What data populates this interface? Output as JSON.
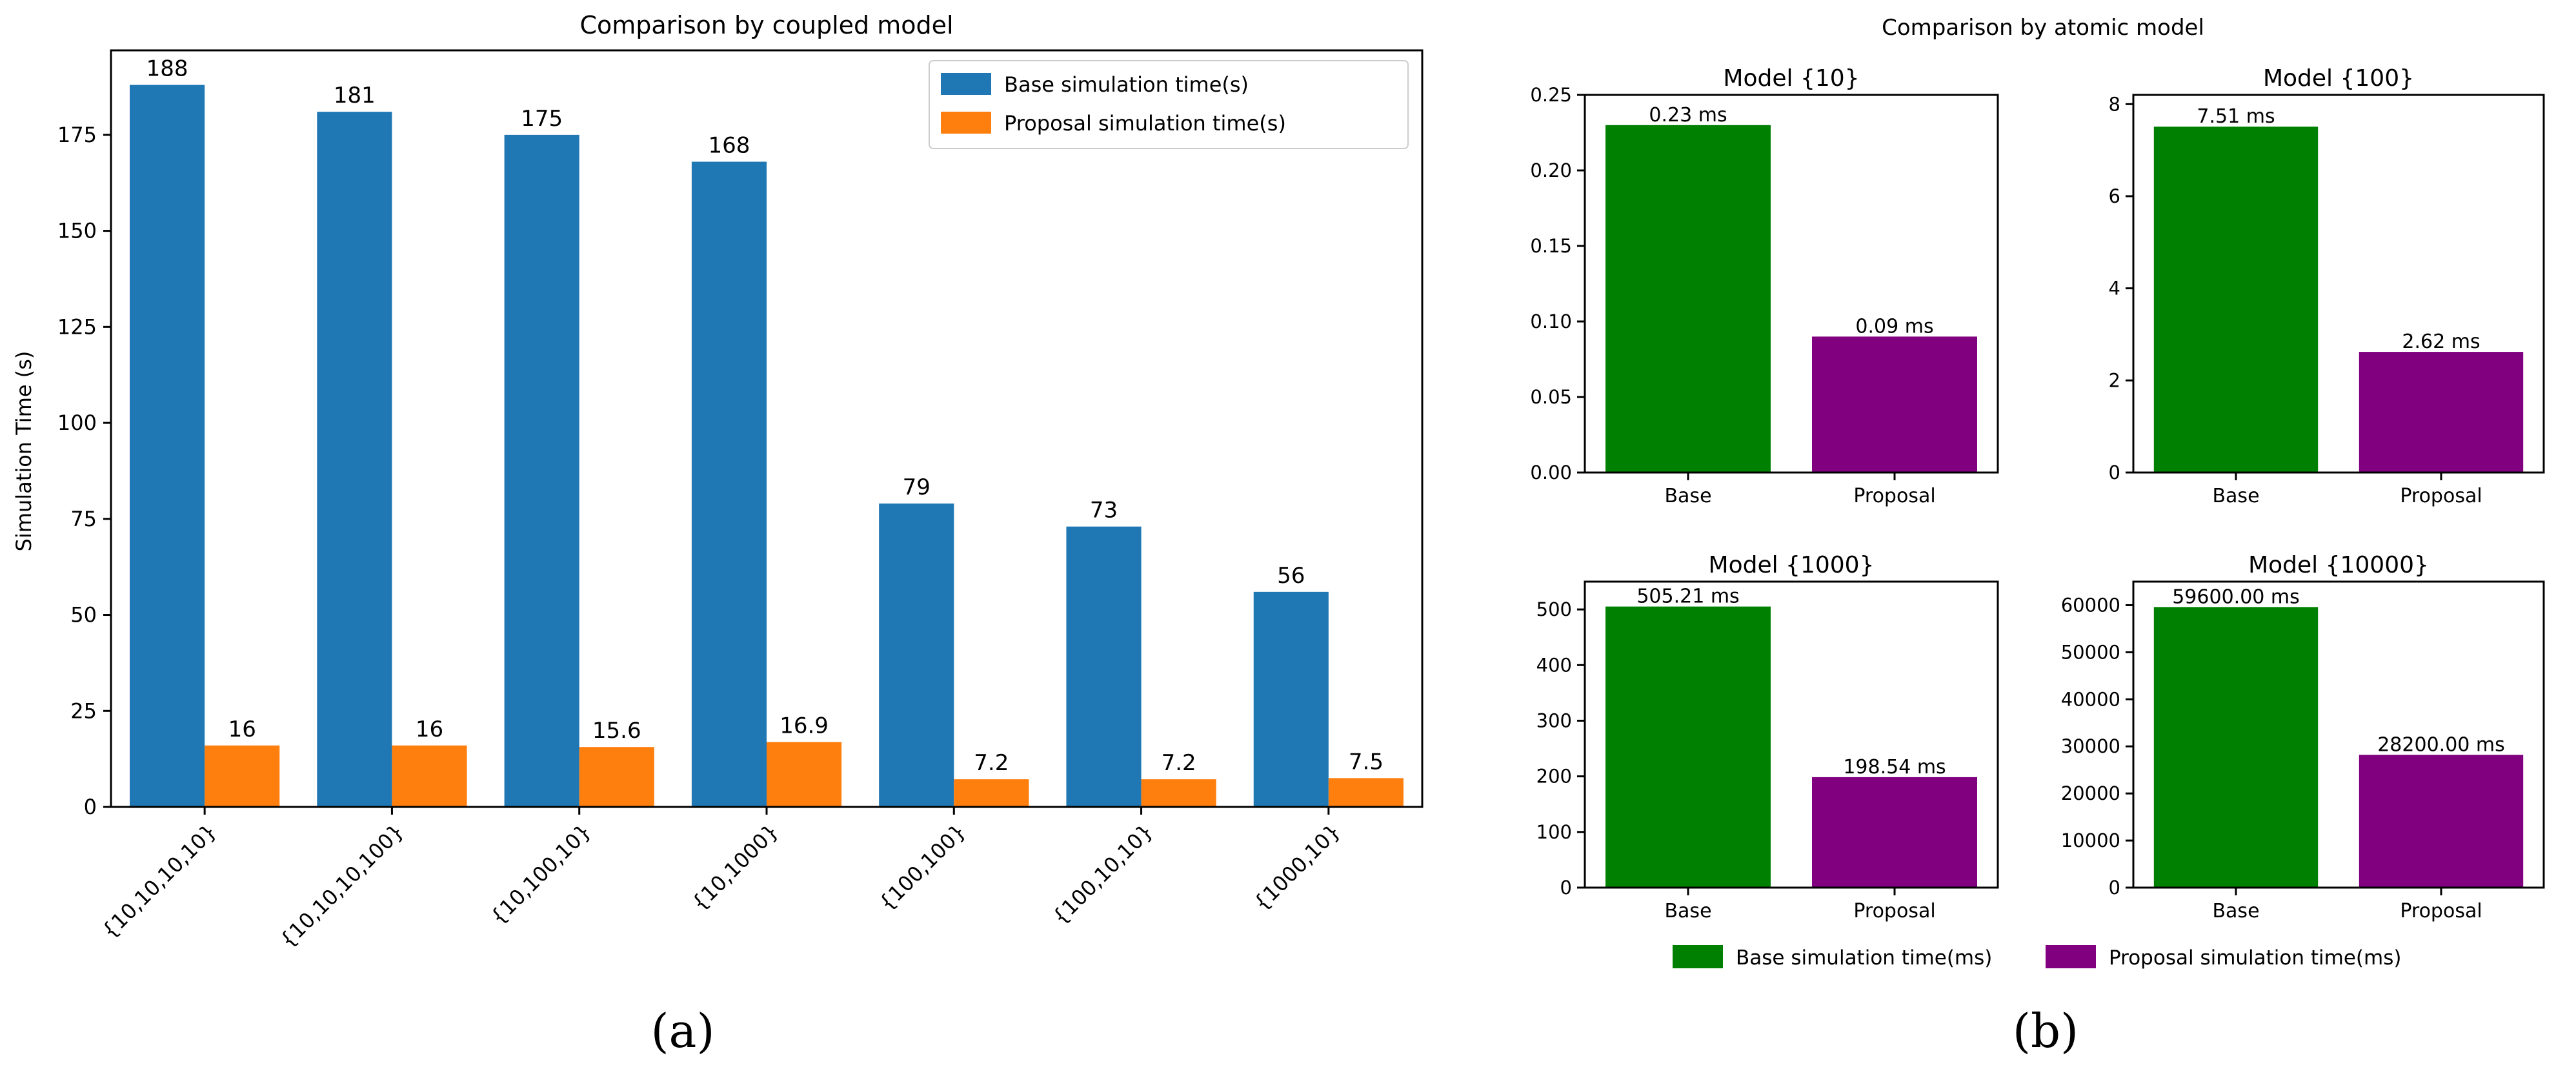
{
  "chart_data": [
    {
      "id": "a",
      "type": "bar",
      "title": "Comparison by coupled model",
      "xlabel": "",
      "ylabel": "Simulation Time (s)",
      "ylim": [
        0,
        197
      ],
      "yticks": [
        0,
        25,
        50,
        75,
        100,
        125,
        150,
        175
      ],
      "categories": [
        "{10,10,10,10}",
        "{10,10,10,100}",
        "{10,100,10}",
        "{10,1000}",
        "{100,100}",
        "{100,10,10}",
        "{1000,10}"
      ],
      "series": [
        {
          "name": "Base simulation time(s)",
          "color": "#1f77b4",
          "values": [
            188,
            181,
            175,
            168,
            79,
            73,
            56
          ],
          "labels": [
            "188",
            "181",
            "175",
            "168",
            "79",
            "73",
            "56"
          ]
        },
        {
          "name": "Proposal simulation time(s)",
          "color": "#ff7f0e",
          "values": [
            16,
            16,
            15.6,
            16.9,
            7.2,
            7.2,
            7.5
          ],
          "labels": [
            "16",
            "16",
            "15.6",
            "16.9",
            "7.2",
            "7.2",
            "7.5"
          ]
        }
      ],
      "legend": "top-right",
      "caption": "(a)"
    },
    {
      "id": "b",
      "type": "bar",
      "title": "Comparison by atomic model",
      "categories": [
        "Base",
        "Proposal"
      ],
      "series_colors": [
        "#008000",
        "#800080"
      ],
      "legend": {
        "placement": "bottom",
        "entries": [
          "Base simulation time(ms)",
          "Proposal simulation time(ms)"
        ]
      },
      "caption": "(b)",
      "subplots": [
        {
          "title": "Model {10}",
          "values": [
            0.23,
            0.09
          ],
          "labels": [
            "0.23 ms",
            "0.09 ms"
          ],
          "ylim": [
            0,
            0.25
          ],
          "yticks": [
            0,
            0.05,
            0.1,
            0.15,
            0.2,
            0.25
          ],
          "ytick_labels": [
            "0.00",
            "0.05",
            "0.10",
            "0.15",
            "0.20",
            "0.25"
          ]
        },
        {
          "title": "Model {100}",
          "values": [
            7.51,
            2.62
          ],
          "labels": [
            "7.51 ms",
            "2.62 ms"
          ],
          "ylim": [
            0,
            8.2
          ],
          "yticks": [
            0,
            2,
            4,
            6,
            8
          ],
          "ytick_labels": [
            "0",
            "2",
            "4",
            "6",
            "8"
          ]
        },
        {
          "title": "Model {1000}",
          "values": [
            505.21,
            198.54
          ],
          "labels": [
            "505.21 ms",
            "198.54 ms"
          ],
          "ylim": [
            0,
            550
          ],
          "yticks": [
            0,
            100,
            200,
            300,
            400,
            500
          ],
          "ytick_labels": [
            "0",
            "100",
            "200",
            "300",
            "400",
            "500"
          ]
        },
        {
          "title": "Model {10000}",
          "values": [
            59600,
            28200
          ],
          "labels": [
            "59600.00 ms",
            "28200.00 ms"
          ],
          "ylim": [
            0,
            65000
          ],
          "yticks": [
            0,
            10000,
            20000,
            30000,
            40000,
            50000,
            60000
          ],
          "ytick_labels": [
            "0",
            "10000",
            "20000",
            "30000",
            "40000",
            "50000",
            "60000"
          ]
        }
      ]
    }
  ]
}
